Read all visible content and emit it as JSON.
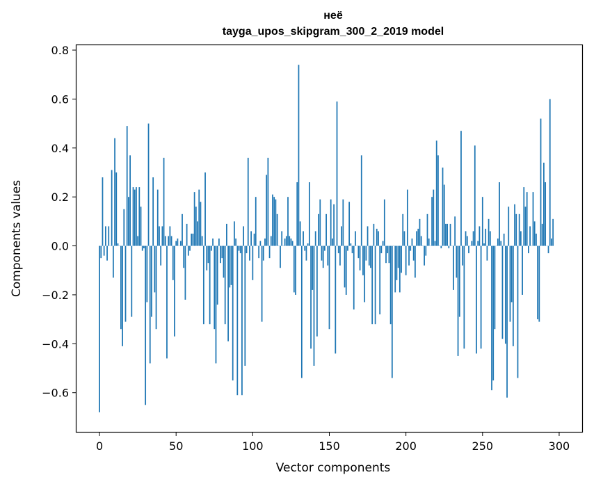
{
  "chart_data": {
    "type": "bar",
    "title_line1": "неё",
    "title_line2": "tayga_upos_skipgram_300_2_2019 model",
    "xlabel": "Vector components",
    "ylabel": "Components values",
    "xlim": [
      -15,
      315
    ],
    "ylim": [
      -0.76,
      0.82
    ],
    "xticks": [
      0,
      50,
      100,
      150,
      200,
      250,
      300
    ],
    "yticks": [
      -0.6,
      -0.4,
      -0.2,
      0.0,
      0.2,
      0.4,
      0.6,
      0.8
    ],
    "ytick_labels": [
      "−0.6",
      "−0.4",
      "−0.2",
      "0.0",
      "0.2",
      "0.4",
      "0.6",
      "0.8"
    ],
    "xtick_labels": [
      "0",
      "50",
      "100",
      "150",
      "200",
      "250",
      "300"
    ],
    "bar_color": "#1f77b4",
    "values": [
      -0.68,
      -0.05,
      0.28,
      -0.04,
      0.08,
      -0.06,
      0.08,
      0.0,
      0.31,
      -0.13,
      0.44,
      0.3,
      0.01,
      0.0,
      -0.34,
      -0.41,
      0.15,
      -0.31,
      0.49,
      0.2,
      0.37,
      -0.29,
      0.24,
      0.23,
      0.24,
      0.04,
      0.24,
      0.16,
      -0.02,
      -0.01,
      -0.65,
      -0.23,
      0.5,
      -0.48,
      -0.29,
      0.28,
      -0.19,
      -0.34,
      0.23,
      0.08,
      -0.08,
      0.08,
      0.36,
      0.04,
      -0.46,
      0.04,
      0.08,
      0.04,
      -0.14,
      -0.37,
      0.02,
      0.03,
      0.0,
      0.02,
      0.13,
      -0.09,
      -0.22,
      0.09,
      -0.04,
      -0.02,
      0.05,
      0.05,
      0.22,
      0.16,
      0.1,
      0.23,
      0.18,
      0.04,
      -0.32,
      0.3,
      -0.1,
      -0.07,
      -0.32,
      -0.02,
      0.03,
      -0.34,
      -0.48,
      -0.24,
      0.03,
      -0.07,
      -0.05,
      -0.13,
      -0.32,
      0.09,
      -0.39,
      -0.17,
      -0.16,
      -0.55,
      0.1,
      0.03,
      -0.61,
      -0.02,
      -0.03,
      -0.61,
      0.08,
      -0.49,
      -0.03,
      0.36,
      -0.06,
      0.06,
      -0.14,
      0.05,
      0.2,
      0.0,
      -0.05,
      0.02,
      -0.31,
      -0.06,
      0.03,
      0.29,
      0.36,
      -0.05,
      0.04,
      0.21,
      0.2,
      0.19,
      0.13,
      0.0,
      -0.09,
      0.06,
      0.0,
      0.03,
      0.04,
      0.2,
      0.04,
      0.03,
      0.02,
      -0.19,
      -0.2,
      0.26,
      0.74,
      0.1,
      -0.54,
      0.06,
      -0.02,
      -0.06,
      0.01,
      0.26,
      -0.42,
      -0.18,
      -0.49,
      0.06,
      -0.37,
      0.13,
      0.19,
      -0.06,
      -0.09,
      -0.02,
      0.13,
      -0.08,
      -0.34,
      0.19,
      0.03,
      0.17,
      -0.44,
      0.59,
      -0.03,
      -0.08,
      0.08,
      0.19,
      -0.17,
      -0.2,
      -0.02,
      0.18,
      0.01,
      -0.03,
      -0.26,
      0.06,
      0.0,
      -0.05,
      -0.1,
      0.37,
      -0.12,
      -0.23,
      -0.06,
      0.08,
      -0.08,
      -0.09,
      -0.32,
      0.09,
      -0.32,
      0.07,
      0.06,
      -0.28,
      -0.03,
      0.02,
      0.19,
      -0.07,
      -0.03,
      -0.07,
      -0.32,
      -0.54,
      0.0,
      -0.19,
      -0.14,
      -0.09,
      -0.19,
      -0.11,
      0.13,
      0.06,
      -0.12,
      0.23,
      -0.08,
      -0.02,
      0.03,
      -0.06,
      -0.13,
      0.06,
      0.07,
      0.11,
      0.04,
      0.0,
      -0.08,
      -0.04,
      0.13,
      0.03,
      0.0,
      0.2,
      0.23,
      0.02,
      0.43,
      0.37,
      0.0,
      -0.01,
      0.32,
      0.25,
      0.09,
      0.09,
      -0.01,
      0.09,
      0.0,
      -0.18,
      0.12,
      -0.13,
      -0.45,
      -0.29,
      0.47,
      -0.08,
      -0.42,
      0.06,
      0.04,
      -0.03,
      0.0,
      0.02,
      0.06,
      0.41,
      -0.44,
      0.02,
      0.08,
      -0.42,
      0.2,
      0.01,
      0.07,
      -0.06,
      0.11,
      0.06,
      -0.59,
      -0.55,
      -0.34,
      0.0,
      0.03,
      0.26,
      0.02,
      -0.38,
      0.05,
      -0.4,
      -0.62,
      0.16,
      -0.31,
      -0.23,
      -0.41,
      0.17,
      0.13,
      -0.54,
      0.13,
      0.06,
      -0.2,
      0.24,
      0.16,
      0.22,
      -0.03,
      0.08,
      0.0,
      0.22,
      0.1,
      0.05,
      -0.3,
      -0.31,
      0.52,
      0.09,
      0.34,
      0.26,
      0.0,
      -0.03,
      0.6,
      0.03,
      0.11
    ]
  }
}
